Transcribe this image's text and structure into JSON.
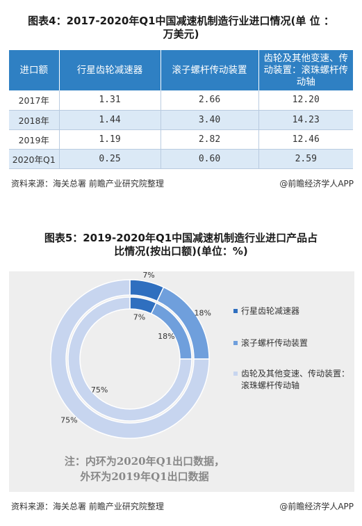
{
  "figure4": {
    "title_line1": "图表4：2017-2020年Q1中国减速机制造行业进口情况(单 位 ：",
    "title_line2": "万美元)",
    "table": {
      "headers": [
        "进口额",
        "行星齿轮减速器",
        "滚子螺杆传动装置",
        "齿轮及其他变速、传动装置：滚珠螺杆传动轴"
      ],
      "rows": [
        [
          "2017年",
          "1.31",
          "2.66",
          "12.20"
        ],
        [
          "2018年",
          "1.44",
          "3.40",
          "14.23"
        ],
        [
          "2019年",
          "1.19",
          "2.82",
          "12.46"
        ],
        [
          "2020年Q1",
          "0.25",
          "0.60",
          "2.59"
        ]
      ]
    },
    "source": "资料来源：海关总署 前瞻产业研究院整理",
    "credit": "@前瞻经济学人APP"
  },
  "figure5": {
    "title_line1": "图表5：2019-2020年Q1中国减速机制造行业进口产品占",
    "title_line2": "比情况(按出口额)(单位：%)",
    "note_line1": "注：内环为2020年Q1出口数据，",
    "note_line2": "外环为2019年Q1出口数据",
    "source": "资料来源：海关总署 前瞻产业研究院整理",
    "credit": "@前瞻经济学人APP"
  },
  "chart_data": {
    "type": "pie",
    "donut": true,
    "categories": [
      "行星齿轮减速器",
      "滚子螺杆传动装置",
      "齿轮及其他变速、传动装置：滚珠螺杆传动轴"
    ],
    "series": [
      {
        "ring": "outer",
        "values": [
          7,
          18,
          75
        ],
        "labels": [
          "7%",
          "18%",
          "75%"
        ]
      },
      {
        "ring": "inner",
        "values": [
          7,
          18,
          75
        ],
        "labels": [
          "7%",
          "18%",
          "75%"
        ]
      }
    ],
    "colors": [
      "#2f6fbf",
      "#6f9fdc",
      "#c7d5ef"
    ],
    "legend_position": "right"
  }
}
